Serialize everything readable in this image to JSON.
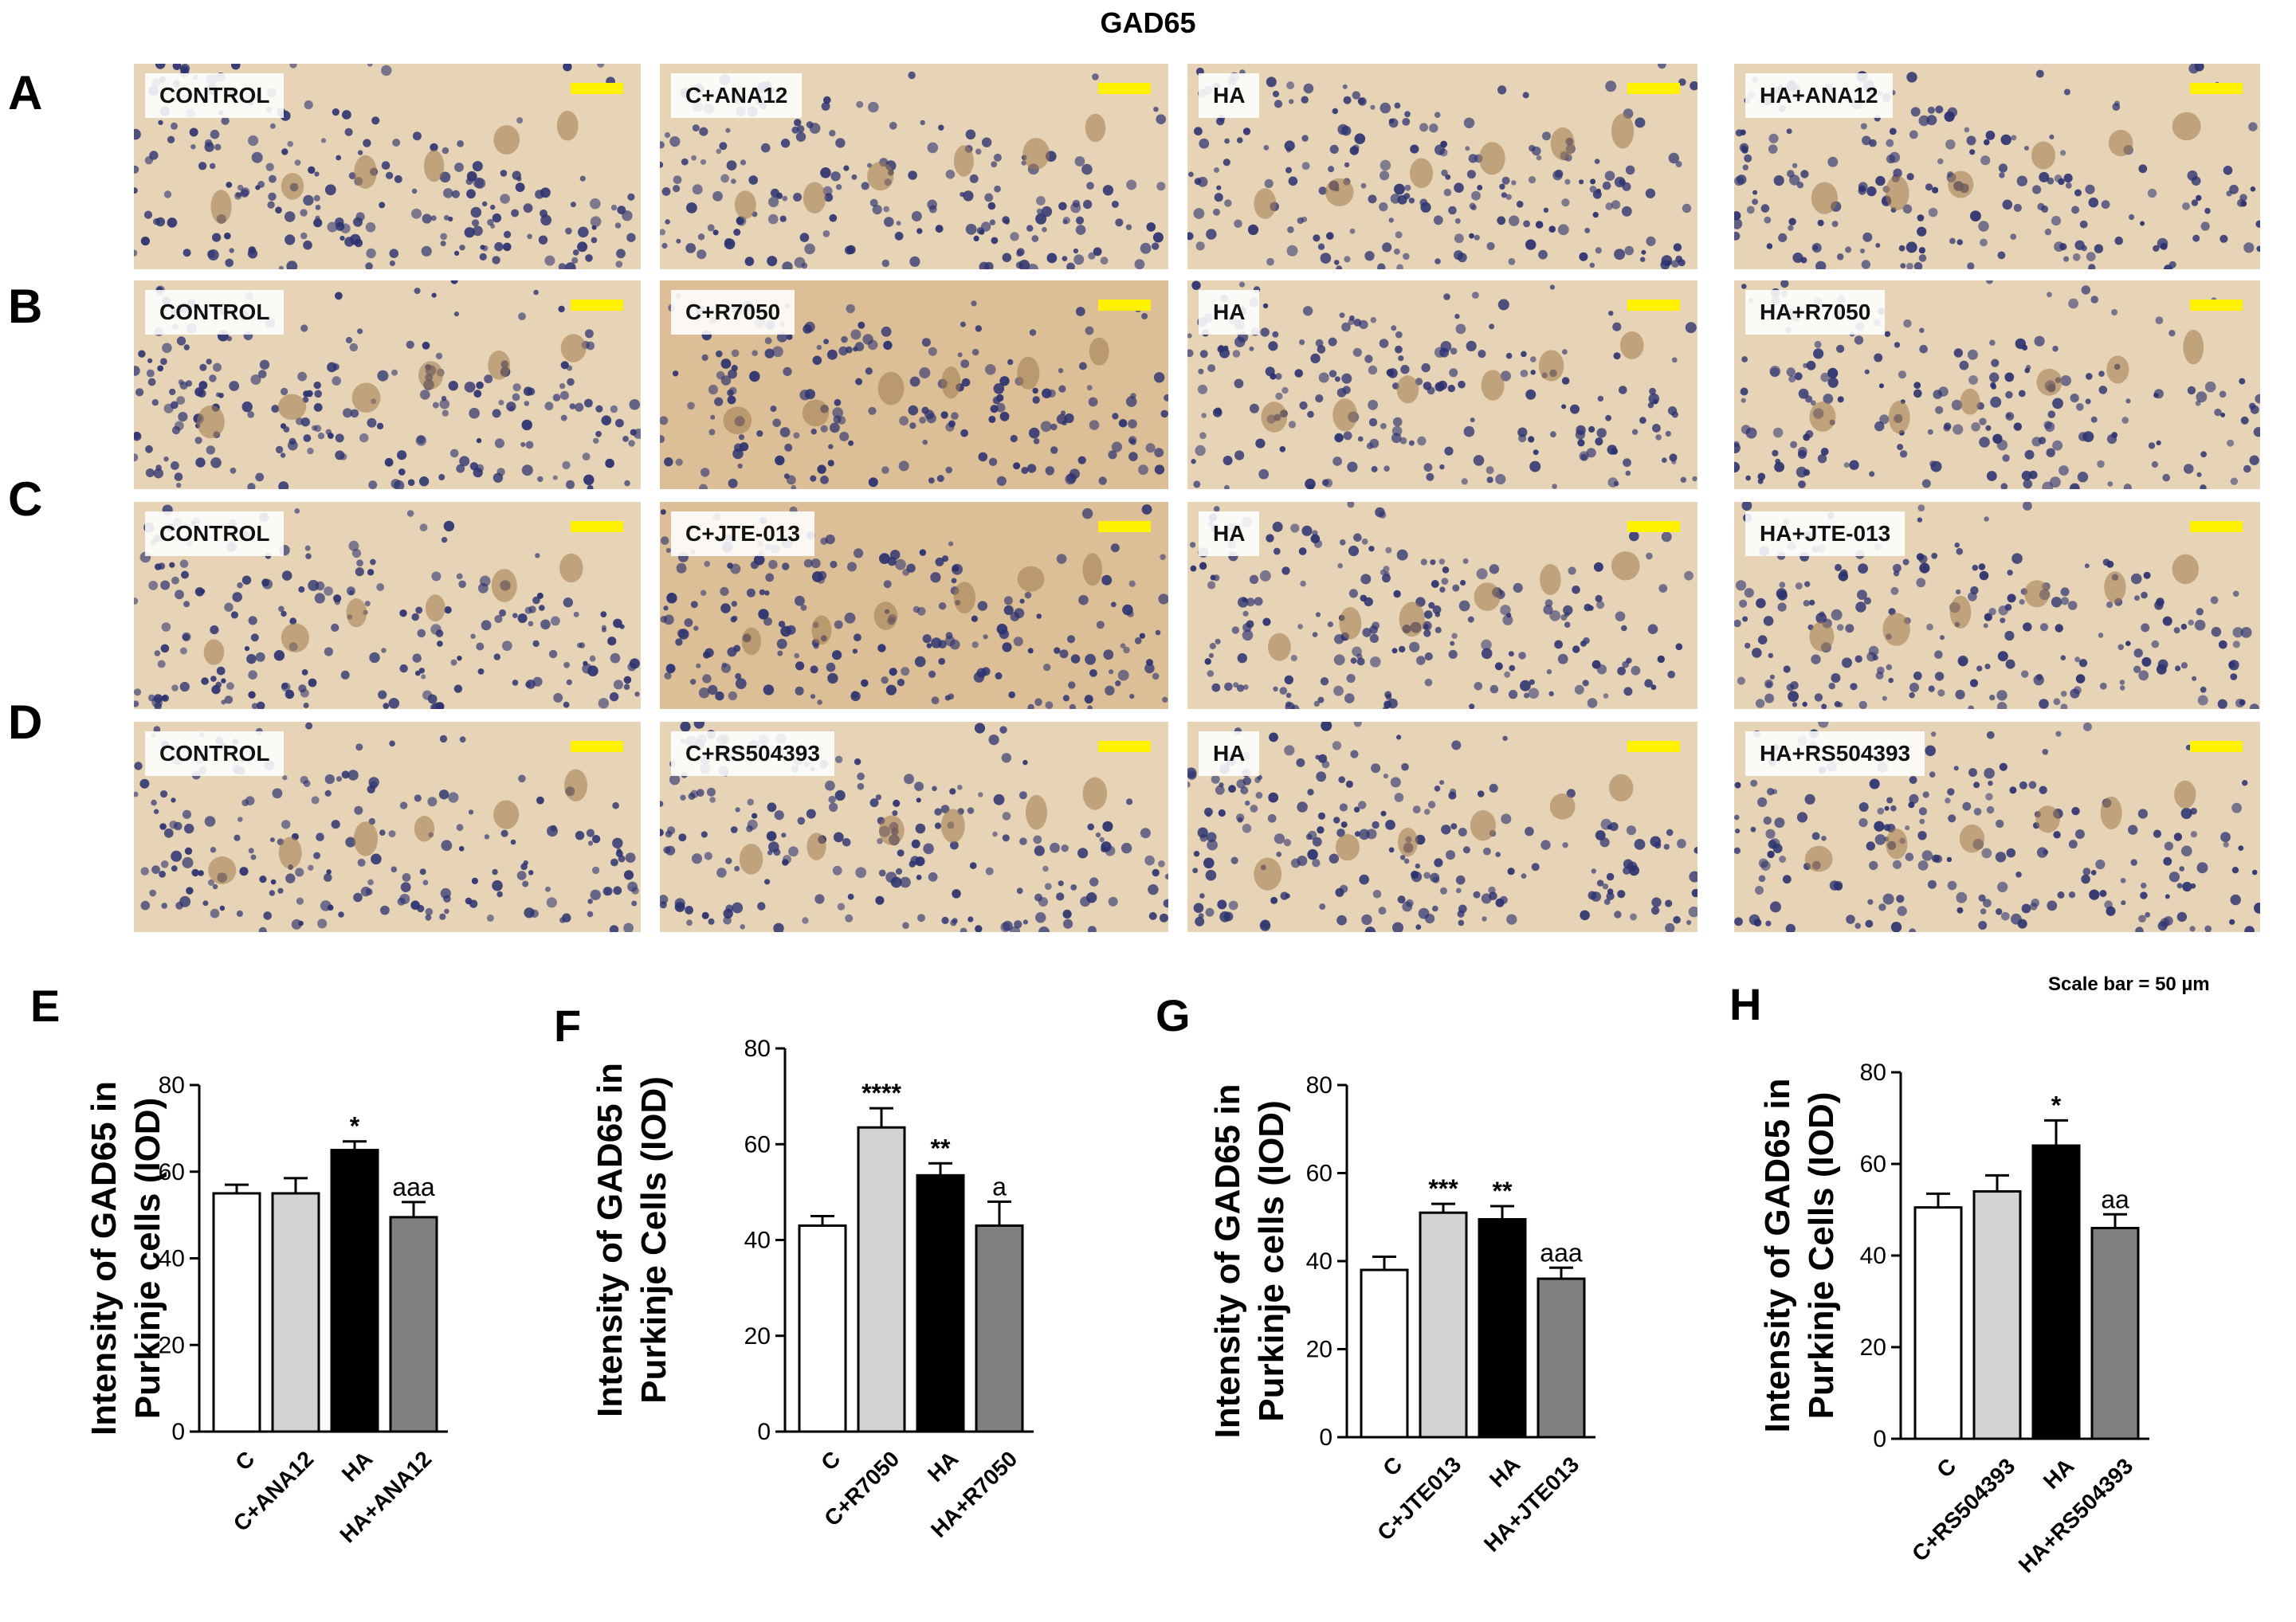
{
  "figure_title": "GAD65",
  "row_letters": [
    "A",
    "B",
    "C",
    "D"
  ],
  "rows": [
    {
      "labels": [
        "CONTROL",
        "C+ANA12",
        "HA",
        "HA+ANA12"
      ]
    },
    {
      "labels": [
        "CONTROL",
        "C+R7050",
        "HA",
        "HA+R7050"
      ]
    },
    {
      "labels": [
        "CONTROL",
        "C+JTE-013",
        "HA",
        "HA+JTE-013"
      ]
    },
    {
      "labels": [
        "CONTROL",
        "C+RS504393",
        "HA",
        "HA+RS504393"
      ]
    }
  ],
  "scale_note": "Scale bar = 50 µm",
  "colors": {
    "scale_bar": "#fff200",
    "bar_C": "#ffffff",
    "bar_Cdrug": "#d3d3d3",
    "bar_HA": "#000000",
    "bar_HAdrug": "#808080",
    "tissue_bg": "#e7d4b6",
    "nuclei": "#2c3270"
  },
  "chart_data": [
    {
      "type": "bar",
      "letter": "E",
      "categories": [
        "C",
        "C+ANA12",
        "HA",
        "HA+ANA12"
      ],
      "values": [
        55,
        55,
        65,
        49.5
      ],
      "errors": [
        2,
        3.5,
        2,
        3.5
      ],
      "annotations": [
        "",
        "",
        "*",
        "aaa"
      ],
      "ylabel_lines": [
        "Intensity of GAD65 in",
        "Purkinje cells (IOD)"
      ],
      "ylim": [
        0,
        80
      ],
      "yticks": [
        0,
        20,
        40,
        60,
        80
      ]
    },
    {
      "type": "bar",
      "letter": "F",
      "categories": [
        "C",
        "C+R7050",
        "HA",
        "HA+R7050"
      ],
      "values": [
        43,
        63.5,
        53.5,
        43
      ],
      "errors": [
        2,
        4,
        2.5,
        5
      ],
      "annotations": [
        "",
        "****",
        "**",
        "a"
      ],
      "ylabel_lines": [
        "Intensity of GAD65 in",
        "Purkinje Cells (IOD)"
      ],
      "ylim": [
        0,
        80
      ],
      "yticks": [
        0,
        20,
        40,
        60,
        80
      ]
    },
    {
      "type": "bar",
      "letter": "G",
      "categories": [
        "C",
        "C+JTE013",
        "HA",
        "HA+JTE013"
      ],
      "values": [
        38,
        51,
        49.5,
        36
      ],
      "errors": [
        3,
        2,
        3,
        2.5
      ],
      "annotations": [
        "",
        "***",
        "**",
        "aaa"
      ],
      "ylabel_lines": [
        "Intensity of GAD65 in",
        "Purkinje cells (IOD)"
      ],
      "ylim": [
        0,
        80
      ],
      "yticks": [
        0,
        20,
        40,
        60,
        80
      ]
    },
    {
      "type": "bar",
      "letter": "H",
      "categories": [
        "C",
        "C+RS504393",
        "HA",
        "HA+RS504393"
      ],
      "values": [
        50.5,
        54,
        64,
        46
      ],
      "errors": [
        3,
        3.5,
        5.5,
        3
      ],
      "annotations": [
        "",
        "",
        "*",
        "aa"
      ],
      "ylabel_lines": [
        "Intensity of GAD65 in",
        "Purkinje Cells (IOD)"
      ],
      "ylim": [
        0,
        80
      ],
      "yticks": [
        0,
        20,
        40,
        60,
        80
      ]
    }
  ]
}
